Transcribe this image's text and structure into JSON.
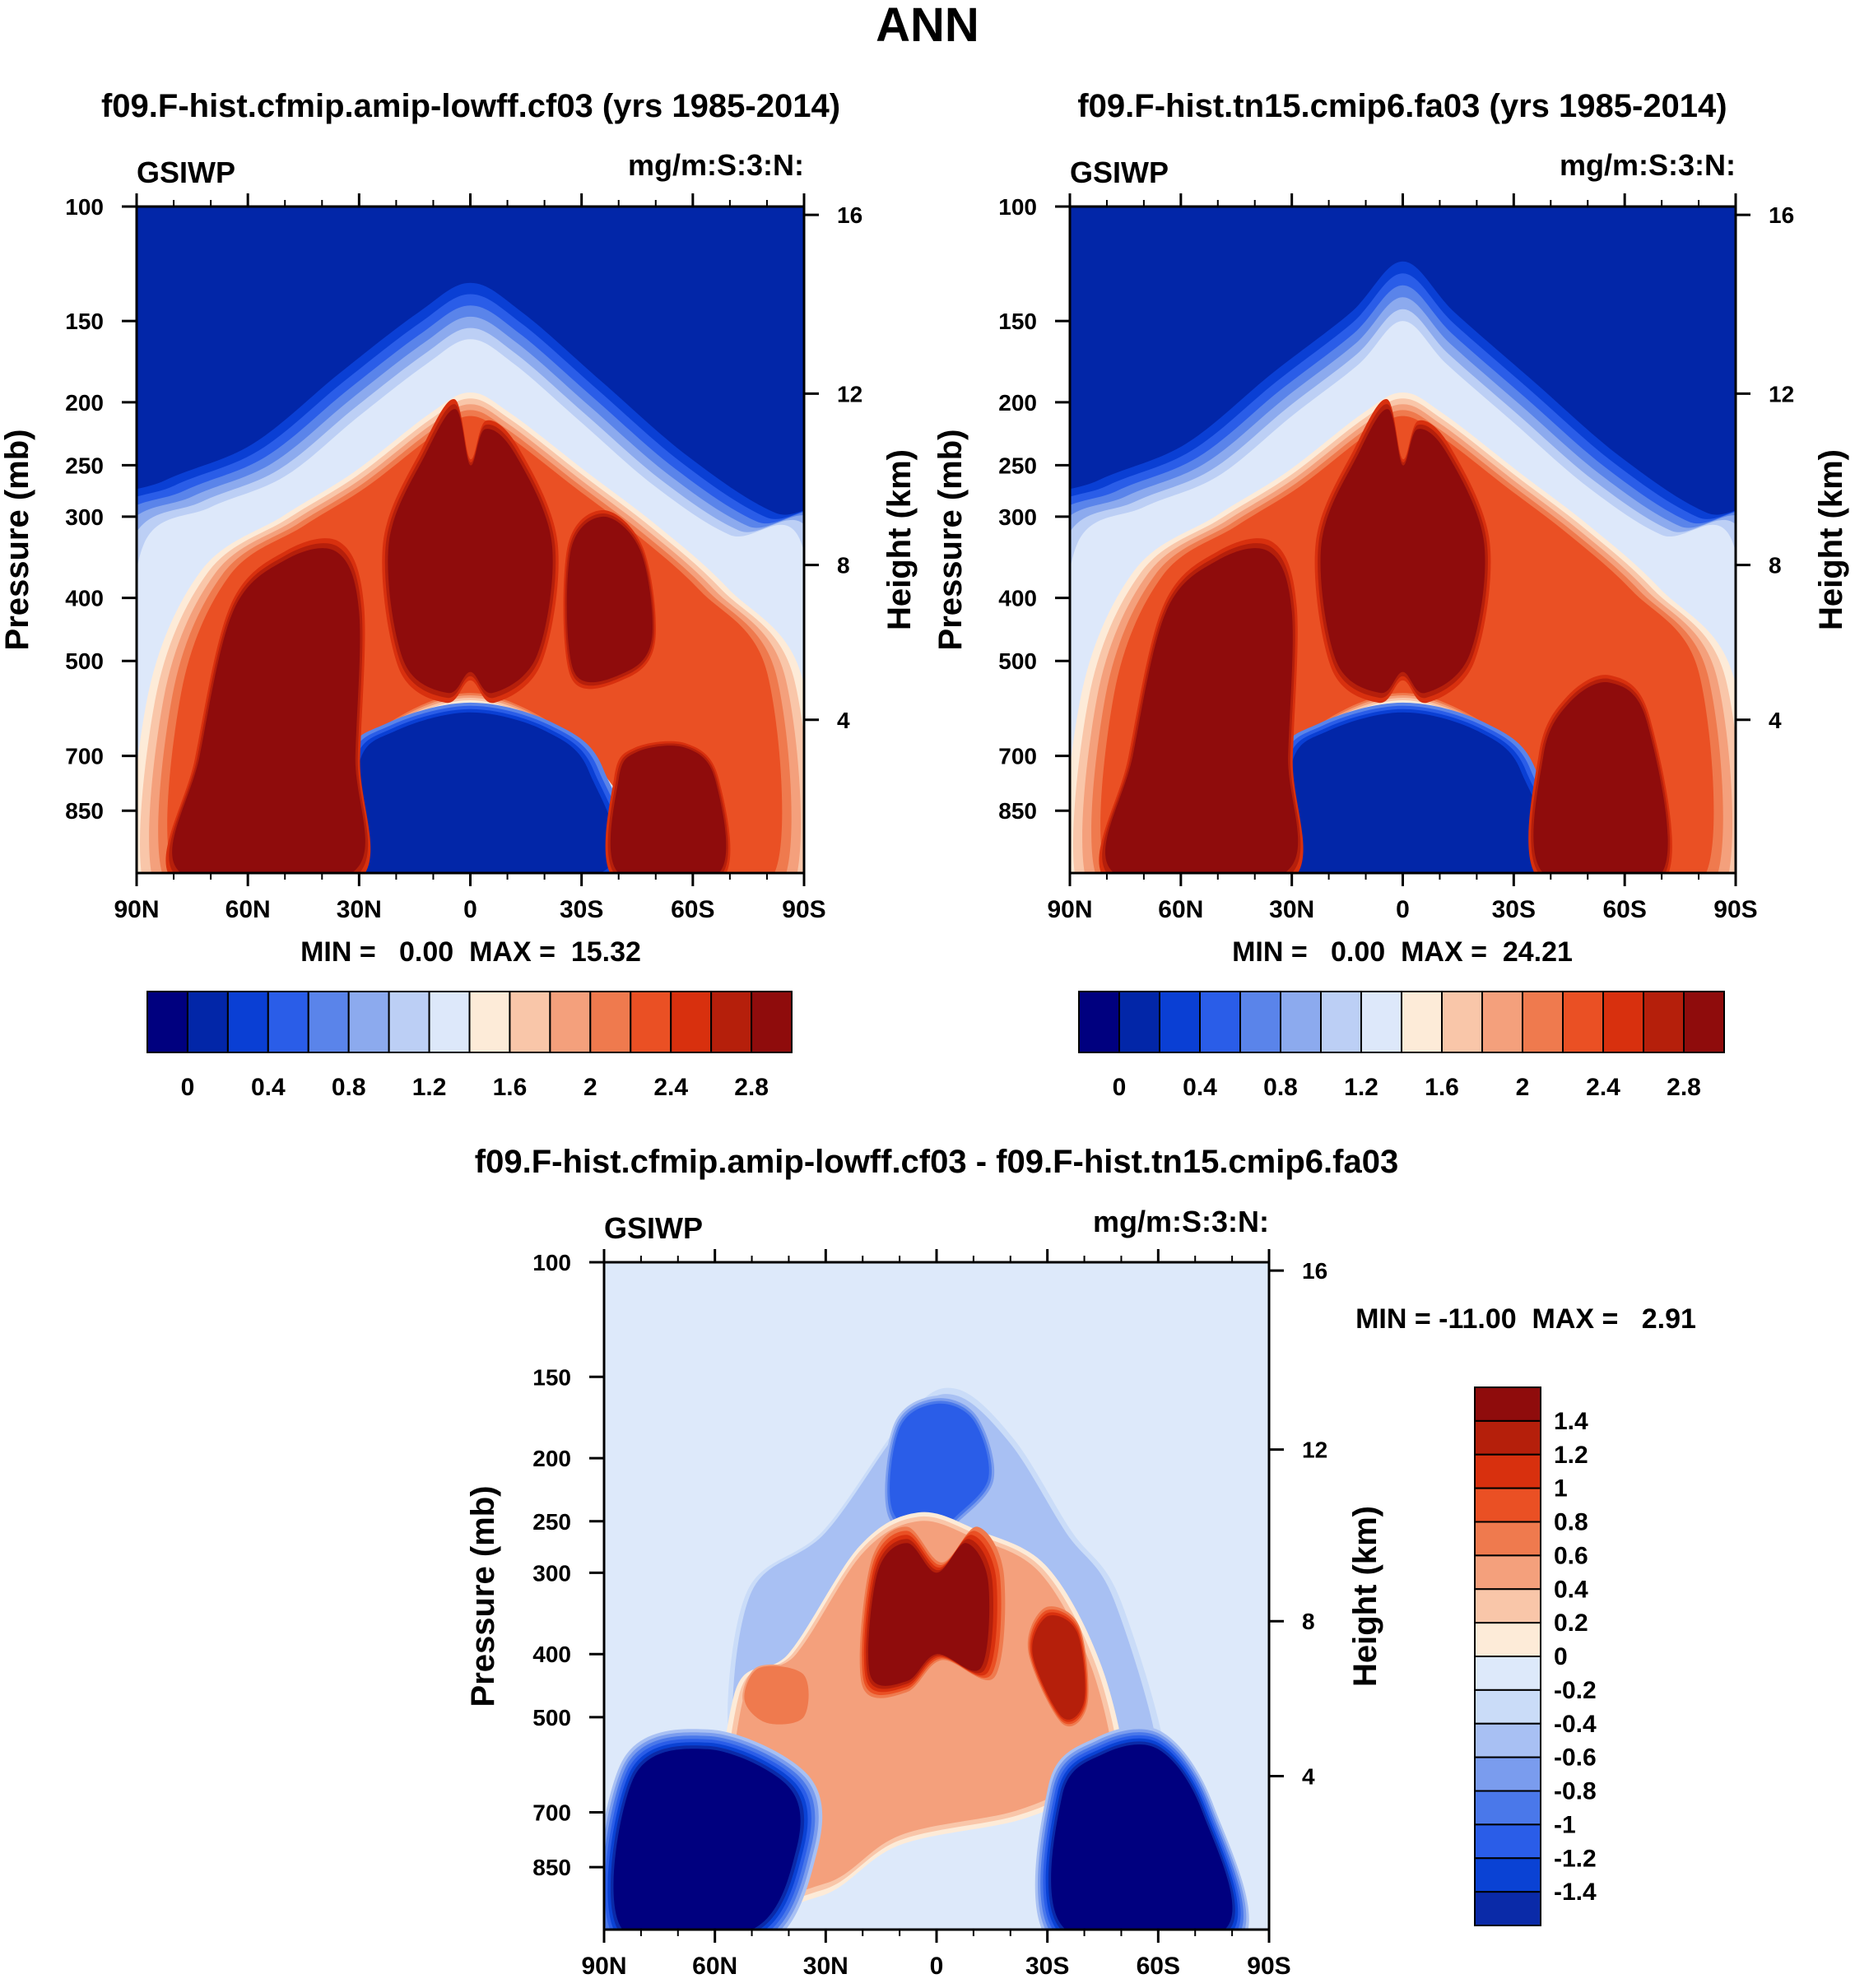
{
  "figure": {
    "title": "ANN"
  },
  "colors": {
    "abs_levels": [
      "#00007f",
      "#0226a8",
      "#0a3fd4",
      "#2a5de8",
      "#5a84ea",
      "#8caaee",
      "#bccff5",
      "#dde8fa",
      "#fdebd8",
      "#f9c6a9",
      "#f4a07c",
      "#ef7a4e",
      "#ea5024",
      "#d8300e",
      "#b51f0b",
      "#8f0c0c"
    ],
    "diff_levels": [
      "#00007f",
      "#0a2aa8",
      "#0a42d4",
      "#2a5de8",
      "#4a78ea",
      "#7a9cee",
      "#a8c0f3",
      "#cadcf8",
      "#dde9fa",
      "#fdebd8",
      "#f9c6a9",
      "#f4a07c",
      "#ef7a4e",
      "#ea5024",
      "#d8300e",
      "#b51f0b",
      "#8f0c0c"
    ]
  },
  "panels": [
    {
      "title": "f09.F-hist.cfmip.amip-lowff.cf03 (yrs 1985-2014)",
      "left_label": "GSIWP",
      "right_label": "mg/m:S:3:N:",
      "min_max": "MIN =   0.00  MAX =  15.32"
    },
    {
      "title": "f09.F-hist.tn15.cmip6.fa03 (yrs 1985-2014)",
      "left_label": "GSIWP",
      "right_label": "mg/m:S:3:N:",
      "min_max": "MIN =   0.00  MAX =  24.21"
    },
    {
      "title": "f09.F-hist.cfmip.amip-lowff.cf03 - f09.F-hist.tn15.cmip6.fa03",
      "left_label": "GSIWP",
      "right_label": "mg/m:S:3:N:",
      "min_max": "MIN = -11.00  MAX =   2.91"
    }
  ],
  "axes": {
    "ylabel": "Pressure (mb)",
    "y2label": "Height (km)"
  },
  "colorbars": {
    "abs_labels": [
      "0",
      "0.4",
      "0.8",
      "1.2",
      "1.6",
      "2",
      "2.4",
      "2.8"
    ],
    "diff_labels": [
      "1.4",
      "1.2",
      "1",
      "0.8",
      "0.6",
      "0.4",
      "0.2",
      "0",
      "-0.2",
      "-0.4",
      "-0.6",
      "-0.8",
      "-1",
      "-1.2",
      "-1.4"
    ]
  },
  "chart_data": [
    {
      "type": "heatmap",
      "title": "f09.F-hist.cfmip.amip-lowff.cf03 (yrs 1985-2014)",
      "variable": "GSIWP",
      "units": "mg/m:S:3:N:",
      "x_ticks": [
        "90N",
        "60N",
        "30N",
        "0",
        "30S",
        "60S",
        "90S"
      ],
      "x_values": [
        90,
        60,
        30,
        0,
        -30,
        -60,
        -90
      ],
      "y_ticks": [
        100,
        150,
        200,
        250,
        300,
        400,
        500,
        700,
        850
      ],
      "y2_ticks": [
        16,
        12,
        8,
        4
      ],
      "ylim": [
        100,
        1000
      ],
      "xlabel": "",
      "ylabel": "Pressure (mb)",
      "y2label": "Height (km)",
      "levels": [
        0,
        0.2,
        0.4,
        0.6,
        0.8,
        1.0,
        1.2,
        1.4,
        1.6,
        1.8,
        2.0,
        2.2,
        2.4,
        2.6,
        2.8,
        3.0
      ],
      "min": 0.0,
      "max": 15.32
    },
    {
      "type": "heatmap",
      "title": "f09.F-hist.tn15.cmip6.fa03 (yrs 1985-2014)",
      "variable": "GSIWP",
      "units": "mg/m:S:3:N:",
      "x_ticks": [
        "90N",
        "60N",
        "30N",
        "0",
        "30S",
        "60S",
        "90S"
      ],
      "x_values": [
        90,
        60,
        30,
        0,
        -30,
        -60,
        -90
      ],
      "y_ticks": [
        100,
        150,
        200,
        250,
        300,
        400,
        500,
        700,
        850
      ],
      "y2_ticks": [
        16,
        12,
        8,
        4
      ],
      "ylim": [
        100,
        1000
      ],
      "xlabel": "",
      "ylabel": "Pressure (mb)",
      "y2label": "Height (km)",
      "levels": [
        0,
        0.2,
        0.4,
        0.6,
        0.8,
        1.0,
        1.2,
        1.4,
        1.6,
        1.8,
        2.0,
        2.2,
        2.4,
        2.6,
        2.8,
        3.0
      ],
      "min": 0.0,
      "max": 24.21
    },
    {
      "type": "heatmap",
      "title": "f09.F-hist.cfmip.amip-lowff.cf03 - f09.F-hist.tn15.cmip6.fa03",
      "variable": "GSIWP",
      "units": "mg/m:S:3:N:",
      "x_ticks": [
        "90N",
        "60N",
        "30N",
        "0",
        "30S",
        "60S",
        "90S"
      ],
      "x_values": [
        90,
        60,
        30,
        0,
        -30,
        -60,
        -90
      ],
      "y_ticks": [
        100,
        150,
        200,
        250,
        300,
        400,
        500,
        700,
        850
      ],
      "y2_ticks": [
        16,
        12,
        8,
        4
      ],
      "ylim": [
        100,
        1000
      ],
      "xlabel": "",
      "ylabel": "Pressure (mb)",
      "y2label": "Height (km)",
      "levels": [
        -1.4,
        -1.2,
        -1.0,
        -0.8,
        -0.6,
        -0.4,
        -0.2,
        0,
        0.2,
        0.4,
        0.6,
        0.8,
        1.0,
        1.2,
        1.4
      ],
      "min": -11.0,
      "max": 2.91
    }
  ]
}
